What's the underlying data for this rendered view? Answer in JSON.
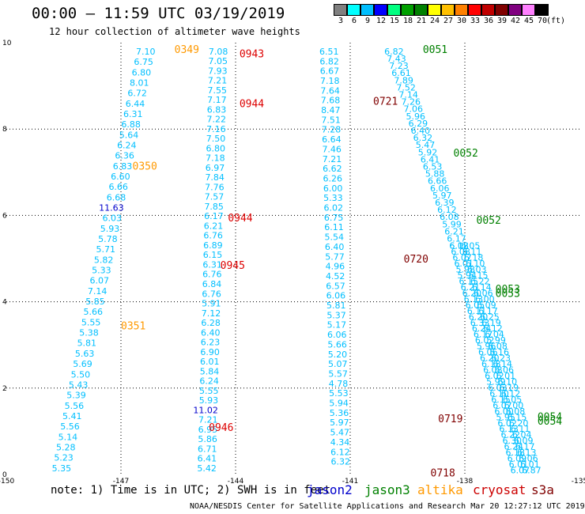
{
  "header": {
    "title": "00:00 – 11:59 UTC 03/19/2019",
    "subtitle": "12 hour collection of altimeter wave heights"
  },
  "colorbar": {
    "labels": [
      "3",
      "6",
      "9",
      "12",
      "15",
      "18",
      "21",
      "24",
      "27",
      "30",
      "33",
      "36",
      "39",
      "42",
      "45",
      "70"
    ],
    "unit": "(ft)",
    "colors": [
      "#808080",
      "#00ffff",
      "#00bfff",
      "#0000ff",
      "#00ff80",
      "#00a000",
      "#008000",
      "#ffff00",
      "#ffc000",
      "#ff8000",
      "#ff0000",
      "#c00000",
      "#800000",
      "#800080",
      "#ff80ff",
      "#000000"
    ]
  },
  "footer": {
    "note": "note: 1) Time is in UTC; 2) SWH is in feet",
    "credit": "NOAA/NESDIS Center for Satellite Applications and Research   Mar 20 12:27:12 UTC 2019"
  },
  "legend": [
    {
      "label": "jason2",
      "color": "#0000cc"
    },
    {
      "label": "jason3",
      "color": "#008000"
    },
    {
      "label": "altika",
      "color": "#ff9900"
    },
    {
      "label": "cryosat",
      "color": "#cc0000"
    },
    {
      "label": "s3a",
      "color": "#800000"
    }
  ],
  "chart_data": {
    "type": "scatter",
    "xlim": [
      -150,
      -135
    ],
    "ylim": [
      0,
      10
    ],
    "xticks": [
      "-150",
      "-147",
      "-144",
      "-141",
      "-138",
      "-135"
    ],
    "yticks": [
      "0",
      "2",
      "4",
      "6",
      "8",
      "10"
    ],
    "grid": true,
    "point_color": "#00bfff",
    "tracks": [
      {
        "x0": -146.1,
        "y0": 9.8,
        "x1": -148.3,
        "y1": 0.15,
        "values": [
          "7.10",
          "6.75",
          "6.80",
          "8.01",
          "6.72",
          "6.44",
          "6.31",
          "6.88",
          "5.64",
          "6.24",
          "6.36",
          "6.83",
          "6.60",
          "6.66",
          "6.68",
          "11.63",
          "6.03",
          "5.93",
          "5.78",
          "5.71",
          "5.82",
          "5.33",
          "6.07",
          "7.14",
          "5.85",
          "5.66",
          "5.55",
          "5.38",
          "5.81",
          "5.63",
          "5.69",
          "5.50",
          "5.43",
          "5.39",
          "5.56",
          "5.41",
          "5.56",
          "5.14",
          "5.28",
          "5.23",
          "5.35"
        ],
        "highlight": {
          "15": "#0000cc"
        }
      },
      {
        "x0": -144.2,
        "y0": 9.8,
        "x1": -144.5,
        "y1": 0.15,
        "values": [
          "7.08",
          "7.05",
          "7.93",
          "7.21",
          "7.55",
          "7.17",
          "6.83",
          "7.22",
          "7.16",
          "7.50",
          "6.80",
          "7.18",
          "6.97",
          "7.84",
          "7.76",
          "7.57",
          "7.85",
          "6.17",
          "6.21",
          "6.76",
          "6.89",
          "6.15",
          "6.31",
          "6.76",
          "6.84",
          "6.76",
          "5.91",
          "7.12",
          "6.28",
          "6.40",
          "6.23",
          "6.90",
          "6.01",
          "5.84",
          "6.24",
          "5.55",
          "5.93",
          "11.02",
          "7.21",
          "6.95",
          "5.86",
          "6.71",
          "6.41",
          "5.42"
        ],
        "highlight": {
          "37": "#0000cc"
        }
      },
      {
        "x0": -141.3,
        "y0": 9.8,
        "x1": -141.0,
        "y1": 0.3,
        "values": [
          "6.51",
          "6.82",
          "6.67",
          "7.18",
          "7.64",
          "7.68",
          "8.47",
          "7.51",
          "7.28",
          "6.64",
          "7.46",
          "7.21",
          "6.62",
          "6.26",
          "6.00",
          "5.33",
          "6.02",
          "6.75",
          "6.11",
          "5.54",
          "6.40",
          "5.77",
          "4.96",
          "4.52",
          "6.57",
          "6.06",
          "5.81",
          "5.37",
          "5.17",
          "6.06",
          "5.66",
          "5.20",
          "5.07",
          "5.57",
          "4.78",
          "5.53",
          "5.94",
          "5.36",
          "5.97",
          "5.47",
          "4.34",
          "6.12",
          "6.32"
        ],
        "highlight": {}
      },
      {
        "x0": -139.6,
        "y0": 9.8,
        "x1": -137.9,
        "y1": 5.3,
        "values": [
          "6.82",
          "7.43",
          "7.23",
          "6.61",
          "7.89",
          "7.52",
          "7.14",
          "7.26",
          "7.06",
          "5.96",
          "6.29",
          "6.40",
          "6.32",
          "5.47",
          "5.92",
          "6.41",
          "6.53",
          "5.88",
          "6.66",
          "6.06",
          "5.97",
          "6.39",
          "6.12",
          "6.08",
          "5.99",
          "6.21",
          "6.17",
          "6.08"
        ],
        "highlight": {}
      },
      {
        "x0": -137.9,
        "y0": 5.3,
        "x1": -136.3,
        "y1": 0.1,
        "values": [
          "6.12",
          "6.08",
          "6.07",
          "6.01",
          "5.98",
          "5.94",
          "6.15",
          "6.21",
          "6.20",
          "6.13",
          "6.05",
          "6.11",
          "6.20",
          "6.33",
          "6.24",
          "6.17",
          "6.02",
          "5.96",
          "6.06",
          "6.20",
          "6.18",
          "6.08",
          "6.02",
          "5.99",
          "6.03",
          "6.10",
          "6.15",
          "6.07",
          "6.00",
          "5.95",
          "6.02",
          "6.13",
          "6.22",
          "6.30",
          "6.24",
          "6.18",
          "6.09",
          "6.01",
          "6.07"
        ],
        "highlight": {}
      },
      {
        "x0": -137.6,
        "y0": 5.3,
        "x1": -136.0,
        "y1": 0.1,
        "values": [
          "6.05",
          "6.11",
          "6.18",
          "6.10",
          "6.03",
          "6.15",
          "6.22",
          "6.14",
          "6.06",
          "6.00",
          "6.09",
          "6.17",
          "6.25",
          "6.19",
          "6.12",
          "6.04",
          "5.99",
          "6.08",
          "6.16",
          "6.23",
          "6.14",
          "6.06",
          "6.01",
          "6.10",
          "6.19",
          "6.12",
          "6.05",
          "6.00",
          "6.08",
          "6.15",
          "6.20",
          "6.11",
          "6.04",
          "6.09",
          "6.17",
          "6.13",
          "6.06",
          "6.01",
          "6.87"
        ],
        "highlight": {}
      }
    ],
    "annotations": [
      {
        "text": "0349",
        "x": -145.6,
        "y": 9.85,
        "color": "#ff9900"
      },
      {
        "text": "0943",
        "x": -143.9,
        "y": 9.75,
        "color": "#dd0000"
      },
      {
        "text": "0944",
        "x": -143.9,
        "y": 8.6,
        "color": "#dd0000"
      },
      {
        "text": "0350",
        "x": -146.7,
        "y": 7.15,
        "color": "#ff9900"
      },
      {
        "text": "0944",
        "x": -144.2,
        "y": 5.95,
        "color": "#dd0000"
      },
      {
        "text": "0945",
        "x": -144.4,
        "y": 4.85,
        "color": "#dd0000"
      },
      {
        "text": "0351",
        "x": -147.0,
        "y": 3.45,
        "color": "#ff9900"
      },
      {
        "text": "0946",
        "x": -144.7,
        "y": 1.1,
        "color": "#dd0000"
      },
      {
        "text": "0051",
        "x": -139.1,
        "y": 9.85,
        "color": "#008000"
      },
      {
        "text": "0721",
        "x": -140.4,
        "y": 8.65,
        "color": "#800000"
      },
      {
        "text": "0052",
        "x": -138.3,
        "y": 7.45,
        "color": "#008000"
      },
      {
        "text": "0052",
        "x": -137.7,
        "y": 5.9,
        "color": "#008000"
      },
      {
        "text": "0720",
        "x": -139.6,
        "y": 5.0,
        "color": "#800000"
      },
      {
        "text": "0053",
        "x": -137.2,
        "y": 4.3,
        "color": "#008000"
      },
      {
        "text": "0053",
        "x": -137.2,
        "y": 4.2,
        "color": "#008000"
      },
      {
        "text": "0719",
        "x": -138.7,
        "y": 1.3,
        "color": "#800000"
      },
      {
        "text": "0054",
        "x": -136.1,
        "y": 1.35,
        "color": "#008000"
      },
      {
        "text": "0054",
        "x": -136.1,
        "y": 1.25,
        "color": "#008000"
      },
      {
        "text": "0718",
        "x": -138.9,
        "y": 0.05,
        "color": "#800000"
      }
    ]
  }
}
